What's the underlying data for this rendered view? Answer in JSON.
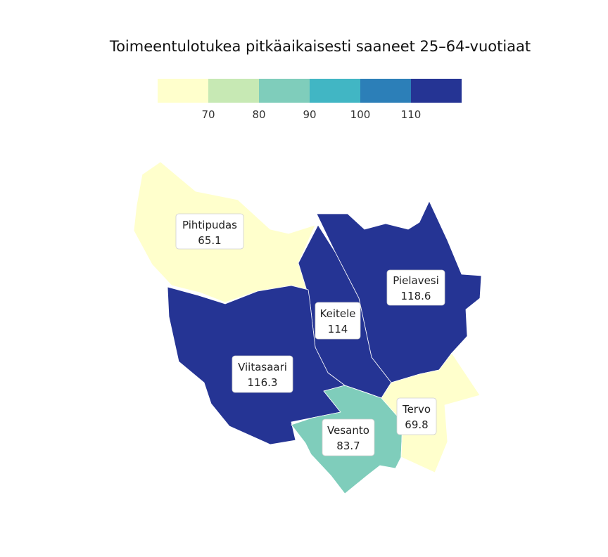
{
  "title": "Toimeentulotukea pitkäaikaisesti saaneet 25–64-vuotiaat",
  "legend": {
    "colors": [
      "#ffffcc",
      "#c7e9b4",
      "#7fcdbb",
      "#41b6c4",
      "#2c7fb8",
      "#253494"
    ],
    "ticks": [
      "70",
      "80",
      "90",
      "100",
      "110"
    ]
  },
  "regions": [
    {
      "name": "Pihtipudas",
      "value": "65.1",
      "color": "#ffffcc"
    },
    {
      "name": "Pielavesi",
      "value": "118.6",
      "color": "#253494"
    },
    {
      "name": "Keitele",
      "value": "114",
      "color": "#253494"
    },
    {
      "name": "Viitasaari",
      "value": "116.3",
      "color": "#253494"
    },
    {
      "name": "Tervo",
      "value": "69.8",
      "color": "#ffffcc"
    },
    {
      "name": "Vesanto",
      "value": "83.7",
      "color": "#7fcdbb"
    }
  ]
}
